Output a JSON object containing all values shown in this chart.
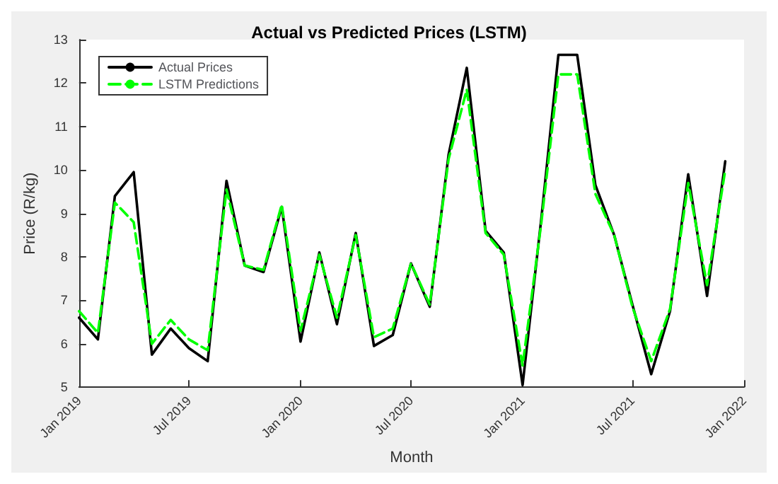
{
  "chart_data": {
    "type": "line",
    "title": "Actual vs Predicted Prices (LSTM)",
    "xlabel": "Month",
    "ylabel": "Price (R/kg)",
    "x": [
      "2019-01",
      "2019-02",
      "2019-03",
      "2019-04",
      "2019-05",
      "2019-06",
      "2019-07",
      "2019-08",
      "2019-09",
      "2019-10",
      "2019-11",
      "2019-12",
      "2020-01",
      "2020-02",
      "2020-03",
      "2020-04",
      "2020-05",
      "2020-06",
      "2020-07",
      "2020-08",
      "2020-09",
      "2020-10",
      "2020-11",
      "2020-12",
      "2021-01",
      "2021-02",
      "2021-03",
      "2021-04",
      "2021-05",
      "2021-06",
      "2021-07",
      "2021-08",
      "2021-09",
      "2021-10",
      "2021-11",
      "2021-12"
    ],
    "series": [
      {
        "name": "Actual Prices",
        "color": "#000000",
        "line_style": "solid",
        "values": [
          6.6,
          6.1,
          9.4,
          9.95,
          5.75,
          6.35,
          5.9,
          5.6,
          9.75,
          7.8,
          7.65,
          9.15,
          6.05,
          8.1,
          6.45,
          8.55,
          5.95,
          6.2,
          7.85,
          6.85,
          10.35,
          12.35,
          8.6,
          8.1,
          5.05,
          8.9,
          12.65,
          12.65,
          9.65,
          8.5,
          6.9,
          5.3,
          6.75,
          9.9,
          7.1,
          10.2
        ]
      },
      {
        "name": "LSTM Predictions",
        "color": "#00ff00",
        "line_style": "dashed",
        "values": [
          6.75,
          6.25,
          9.25,
          8.8,
          6.0,
          6.55,
          6.1,
          5.85,
          9.55,
          7.8,
          7.7,
          9.2,
          6.3,
          8.05,
          6.6,
          8.5,
          6.15,
          6.35,
          7.85,
          6.9,
          10.25,
          11.85,
          8.55,
          8.05,
          5.5,
          8.8,
          12.2,
          12.2,
          9.45,
          8.5,
          6.85,
          5.6,
          6.8,
          9.7,
          7.35,
          10.0
        ]
      }
    ],
    "xlim": [
      "2019-01",
      "2022-01"
    ],
    "xticks": [
      {
        "value": "2019-01",
        "label": "Jan 2019"
      },
      {
        "value": "2019-07",
        "label": "Jul 2019"
      },
      {
        "value": "2020-01",
        "label": "Jan 2020"
      },
      {
        "value": "2020-07",
        "label": "Jul 2020"
      },
      {
        "value": "2021-01",
        "label": "Jan 2021"
      },
      {
        "value": "2021-07",
        "label": "Jul 2021"
      },
      {
        "value": "2022-01",
        "label": "Jan 2022"
      }
    ],
    "ylim": [
      5,
      13
    ],
    "yticks": [
      5,
      6,
      7,
      8,
      9,
      10,
      11,
      12,
      13
    ],
    "legend": "top left",
    "marker": "none"
  }
}
